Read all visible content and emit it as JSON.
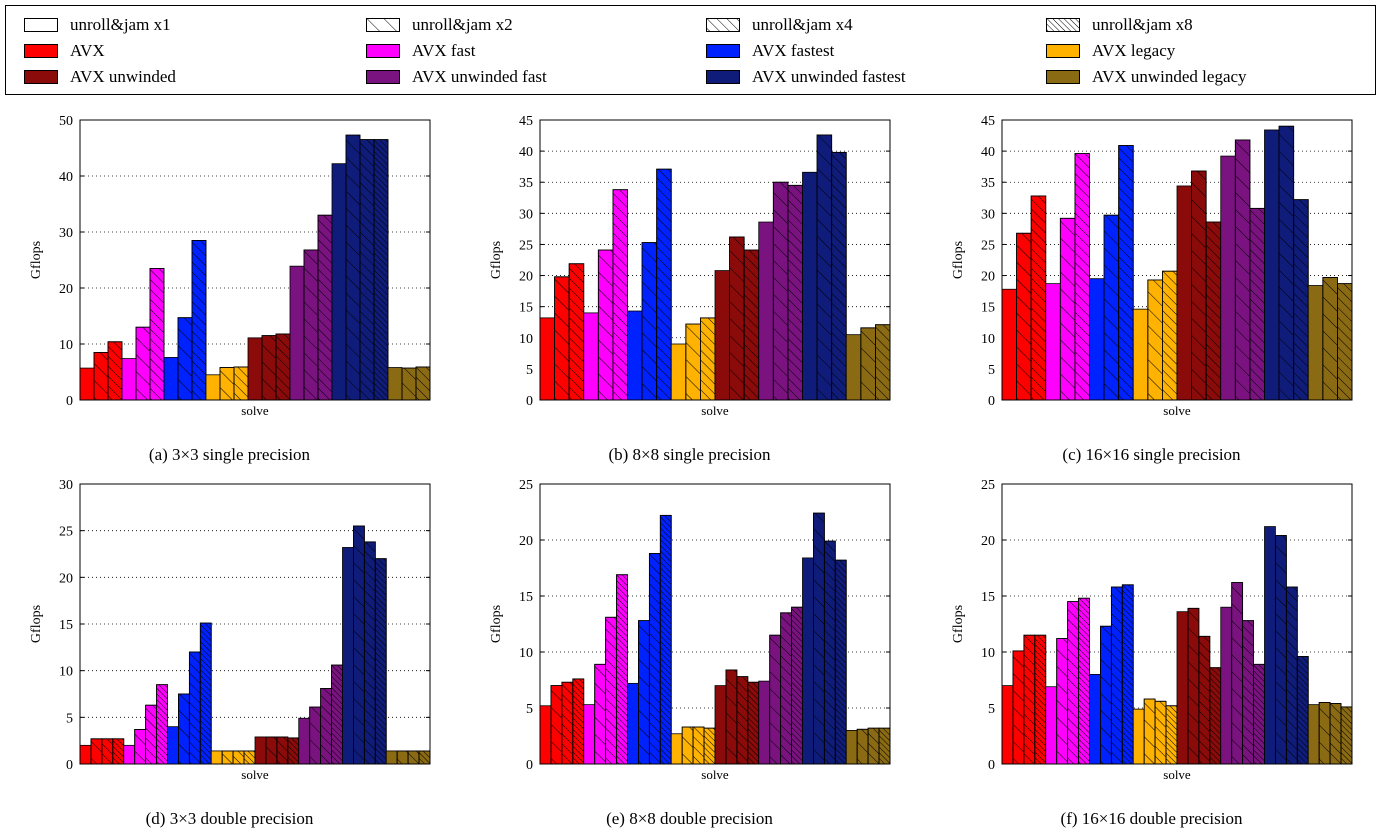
{
  "legend": {
    "items": [
      {
        "label": "unroll&jam x1",
        "kind": "hatch",
        "hatch": 1
      },
      {
        "label": "unroll&jam x2",
        "kind": "hatch",
        "hatch": 2
      },
      {
        "label": "unroll&jam x4",
        "kind": "hatch",
        "hatch": 4
      },
      {
        "label": "unroll&jam x8",
        "kind": "hatch",
        "hatch": 8
      },
      {
        "label": "AVX",
        "kind": "color",
        "color": "#ff0000"
      },
      {
        "label": "AVX fast",
        "kind": "color",
        "color": "#ff00ff"
      },
      {
        "label": "AVX fastest",
        "kind": "color",
        "color": "#0022ff"
      },
      {
        "label": "AVX legacy",
        "kind": "color",
        "color": "#ffb300"
      },
      {
        "label": "AVX unwinded",
        "kind": "color",
        "color": "#8b0a0a"
      },
      {
        "label": "AVX unwinded fast",
        "kind": "color",
        "color": "#7a1380"
      },
      {
        "label": "AVX unwinded fastest",
        "kind": "color",
        "color": "#101c7a"
      },
      {
        "label": "AVX unwinded legacy",
        "kind": "color",
        "color": "#8a6a12"
      }
    ]
  },
  "chart_data": [
    {
      "type": "bar",
      "caption": "(a) 3×3 single precision",
      "ylabel": "Gflops",
      "xlabel": "solve",
      "ylim": [
        0,
        50
      ],
      "yticks": [
        0,
        10,
        20,
        30,
        40,
        50
      ],
      "grid": true,
      "groups": [
        {
          "series": "AVX",
          "color": "#ff0000",
          "unroll": [
            1,
            2,
            4
          ],
          "values": [
            5.7,
            8.5,
            10.4
          ]
        },
        {
          "series": "AVX fast",
          "color": "#ff00ff",
          "unroll": [
            1,
            2,
            4
          ],
          "values": [
            7.4,
            13.0,
            23.5
          ]
        },
        {
          "series": "AVX fastest",
          "color": "#0022ff",
          "unroll": [
            1,
            2,
            4
          ],
          "values": [
            7.6,
            14.7,
            28.5
          ]
        },
        {
          "series": "AVX legacy",
          "color": "#ffb300",
          "unroll": [
            1,
            2,
            4
          ],
          "values": [
            4.5,
            5.8,
            5.9
          ]
        },
        {
          "series": "AVX unwinded",
          "color": "#8b0a0a",
          "unroll": [
            1,
            2,
            4
          ],
          "values": [
            11.1,
            11.5,
            11.8
          ]
        },
        {
          "series": "AVX unwinded fast",
          "color": "#7a1380",
          "unroll": [
            1,
            2,
            4
          ],
          "values": [
            23.9,
            26.8,
            33.0
          ]
        },
        {
          "series": "AVX unwinded fastest",
          "color": "#101c7a",
          "unroll": [
            1,
            2,
            4,
            8
          ],
          "values": [
            42.2,
            47.3,
            46.5,
            46.5
          ]
        },
        {
          "series": "AVX unwinded legacy",
          "color": "#8a6a12",
          "unroll": [
            1,
            2,
            4
          ],
          "values": [
            5.8,
            5.7,
            5.9
          ]
        }
      ]
    },
    {
      "type": "bar",
      "caption": "(b) 8×8 single precision",
      "ylabel": "Gflops",
      "xlabel": "solve",
      "ylim": [
        0,
        45
      ],
      "yticks": [
        0,
        5,
        10,
        15,
        20,
        25,
        30,
        35,
        40,
        45
      ],
      "grid": true,
      "groups": [
        {
          "series": "AVX",
          "color": "#ff0000",
          "unroll": [
            1,
            2,
            4
          ],
          "values": [
            13.2,
            19.8,
            21.9
          ]
        },
        {
          "series": "AVX fast",
          "color": "#ff00ff",
          "unroll": [
            1,
            2,
            4
          ],
          "values": [
            14.0,
            24.1,
            33.8
          ]
        },
        {
          "series": "AVX fastest",
          "color": "#0022ff",
          "unroll": [
            1,
            2,
            4
          ],
          "values": [
            14.3,
            25.3,
            37.1
          ]
        },
        {
          "series": "AVX legacy",
          "color": "#ffb300",
          "unroll": [
            1,
            2,
            4
          ],
          "values": [
            9.0,
            12.2,
            13.2
          ]
        },
        {
          "series": "AVX unwinded",
          "color": "#8b0a0a",
          "unroll": [
            1,
            2,
            4
          ],
          "values": [
            20.8,
            26.2,
            24.1
          ]
        },
        {
          "series": "AVX unwinded fast",
          "color": "#7a1380",
          "unroll": [
            1,
            2,
            4
          ],
          "values": [
            28.6,
            35.0,
            34.5
          ]
        },
        {
          "series": "AVX unwinded fastest",
          "color": "#101c7a",
          "unroll": [
            1,
            2,
            4
          ],
          "values": [
            36.6,
            42.6,
            39.8
          ]
        },
        {
          "series": "AVX unwinded legacy",
          "color": "#8a6a12",
          "unroll": [
            1,
            2,
            4
          ],
          "values": [
            10.5,
            11.6,
            12.1
          ]
        }
      ]
    },
    {
      "type": "bar",
      "caption": "(c) 16×16 single precision",
      "ylabel": "Gflops",
      "xlabel": "solve",
      "ylim": [
        0,
        45
      ],
      "yticks": [
        0,
        5,
        10,
        15,
        20,
        25,
        30,
        35,
        40,
        45
      ],
      "grid": true,
      "groups": [
        {
          "series": "AVX",
          "color": "#ff0000",
          "unroll": [
            1,
            2,
            4
          ],
          "values": [
            17.8,
            26.8,
            32.8
          ]
        },
        {
          "series": "AVX fast",
          "color": "#ff00ff",
          "unroll": [
            1,
            2,
            4
          ],
          "values": [
            18.7,
            29.2,
            39.6
          ]
        },
        {
          "series": "AVX fastest",
          "color": "#0022ff",
          "unroll": [
            1,
            2,
            4
          ],
          "values": [
            19.5,
            29.7,
            40.9
          ]
        },
        {
          "series": "AVX legacy",
          "color": "#ffb300",
          "unroll": [
            1,
            2,
            4
          ],
          "values": [
            14.6,
            19.3,
            20.7
          ]
        },
        {
          "series": "AVX unwinded",
          "color": "#8b0a0a",
          "unroll": [
            1,
            2,
            4
          ],
          "values": [
            34.4,
            36.8,
            28.6
          ]
        },
        {
          "series": "AVX unwinded fast",
          "color": "#7a1380",
          "unroll": [
            1,
            2,
            4
          ],
          "values": [
            39.2,
            41.8,
            30.8
          ]
        },
        {
          "series": "AVX unwinded fastest",
          "color": "#101c7a",
          "unroll": [
            1,
            2,
            4
          ],
          "values": [
            43.4,
            44.0,
            32.2
          ]
        },
        {
          "series": "AVX unwinded legacy",
          "color": "#8a6a12",
          "unroll": [
            1,
            2,
            4
          ],
          "values": [
            18.4,
            19.7,
            18.7
          ]
        }
      ]
    },
    {
      "type": "bar",
      "caption": "(d) 3×3 double precision",
      "ylabel": "Gflops",
      "xlabel": "solve",
      "ylim": [
        0,
        30
      ],
      "yticks": [
        0,
        5,
        10,
        15,
        20,
        25,
        30
      ],
      "grid": true,
      "groups": [
        {
          "series": "AVX",
          "color": "#ff0000",
          "unroll": [
            1,
            2,
            4,
            8
          ],
          "values": [
            2.0,
            2.7,
            2.7,
            2.7
          ]
        },
        {
          "series": "AVX fast",
          "color": "#ff00ff",
          "unroll": [
            1,
            2,
            4,
            8
          ],
          "values": [
            2.0,
            3.7,
            6.3,
            8.5
          ]
        },
        {
          "series": "AVX fastest",
          "color": "#0022ff",
          "unroll": [
            1,
            2,
            4,
            8
          ],
          "values": [
            4.0,
            7.5,
            12.0,
            15.1
          ]
        },
        {
          "series": "AVX legacy",
          "color": "#ffb300",
          "unroll": [
            1,
            2,
            4,
            8
          ],
          "values": [
            1.4,
            1.4,
            1.4,
            1.4
          ]
        },
        {
          "series": "AVX unwinded",
          "color": "#8b0a0a",
          "unroll": [
            1,
            2,
            4,
            8
          ],
          "values": [
            2.9,
            2.9,
            2.9,
            2.8
          ]
        },
        {
          "series": "AVX unwinded fast",
          "color": "#7a1380",
          "unroll": [
            1,
            2,
            4,
            8
          ],
          "values": [
            4.9,
            6.1,
            8.1,
            10.6
          ]
        },
        {
          "series": "AVX unwinded fastest",
          "color": "#101c7a",
          "unroll": [
            1,
            2,
            4,
            8
          ],
          "values": [
            23.2,
            25.5,
            23.8,
            22.0
          ]
        },
        {
          "series": "AVX unwinded legacy",
          "color": "#8a6a12",
          "unroll": [
            1,
            2,
            4,
            8
          ],
          "values": [
            1.4,
            1.4,
            1.4,
            1.4
          ]
        }
      ]
    },
    {
      "type": "bar",
      "caption": "(e) 8×8 double precision",
      "ylabel": "Gflops",
      "xlabel": "solve",
      "ylim": [
        0,
        25
      ],
      "yticks": [
        0,
        5,
        10,
        15,
        20,
        25
      ],
      "grid": true,
      "groups": [
        {
          "series": "AVX",
          "color": "#ff0000",
          "unroll": [
            1,
            2,
            4,
            8
          ],
          "values": [
            5.2,
            7.0,
            7.3,
            7.6
          ]
        },
        {
          "series": "AVX fast",
          "color": "#ff00ff",
          "unroll": [
            1,
            2,
            4,
            8
          ],
          "values": [
            5.3,
            8.9,
            13.1,
            16.9
          ]
        },
        {
          "series": "AVX fastest",
          "color": "#0022ff",
          "unroll": [
            1,
            2,
            4,
            8
          ],
          "values": [
            7.2,
            12.8,
            18.8,
            22.2
          ]
        },
        {
          "series": "AVX legacy",
          "color": "#ffb300",
          "unroll": [
            1,
            2,
            4,
            8
          ],
          "values": [
            2.7,
            3.3,
            3.3,
            3.2
          ]
        },
        {
          "series": "AVX unwinded",
          "color": "#8b0a0a",
          "unroll": [
            1,
            2,
            4,
            8
          ],
          "values": [
            7.0,
            8.4,
            7.8,
            7.3
          ]
        },
        {
          "series": "AVX unwinded fast",
          "color": "#7a1380",
          "unroll": [
            1,
            2,
            4,
            8
          ],
          "values": [
            7.4,
            11.5,
            13.5,
            14.0
          ]
        },
        {
          "series": "AVX unwinded fastest",
          "color": "#101c7a",
          "unroll": [
            1,
            2,
            4,
            8
          ],
          "values": [
            18.4,
            22.4,
            19.9,
            18.2
          ]
        },
        {
          "series": "AVX unwinded legacy",
          "color": "#8a6a12",
          "unroll": [
            1,
            2,
            4,
            8
          ],
          "values": [
            3.0,
            3.1,
            3.2,
            3.2
          ]
        }
      ]
    },
    {
      "type": "bar",
      "caption": "(f) 16×16 double precision",
      "ylabel": "Gflops",
      "xlabel": "solve",
      "ylim": [
        0,
        25
      ],
      "yticks": [
        0,
        5,
        10,
        15,
        20,
        25
      ],
      "grid": true,
      "groups": [
        {
          "series": "AVX",
          "color": "#ff0000",
          "unroll": [
            1,
            2,
            4,
            8
          ],
          "values": [
            7.0,
            10.1,
            11.5,
            11.5
          ]
        },
        {
          "series": "AVX fast",
          "color": "#ff00ff",
          "unroll": [
            1,
            2,
            4,
            8
          ],
          "values": [
            6.9,
            11.2,
            14.5,
            14.8
          ]
        },
        {
          "series": "AVX fastest",
          "color": "#0022ff",
          "unroll": [
            1,
            2,
            4,
            8
          ],
          "values": [
            8.0,
            12.3,
            15.8,
            16.0
          ]
        },
        {
          "series": "AVX legacy",
          "color": "#ffb300",
          "unroll": [
            1,
            2,
            4,
            8
          ],
          "values": [
            4.9,
            5.8,
            5.6,
            5.2
          ]
        },
        {
          "series": "AVX unwinded",
          "color": "#8b0a0a",
          "unroll": [
            1,
            2,
            4,
            8
          ],
          "values": [
            13.6,
            13.9,
            11.4,
            8.6
          ]
        },
        {
          "series": "AVX unwinded fast",
          "color": "#7a1380",
          "unroll": [
            1,
            2,
            4,
            8
          ],
          "values": [
            14.0,
            16.2,
            12.8,
            8.9
          ]
        },
        {
          "series": "AVX unwinded fastest",
          "color": "#101c7a",
          "unroll": [
            1,
            2,
            4,
            8
          ],
          "values": [
            21.2,
            20.4,
            15.8,
            9.6
          ]
        },
        {
          "series": "AVX unwinded legacy",
          "color": "#8a6a12",
          "unroll": [
            1,
            2,
            4,
            8
          ],
          "values": [
            5.3,
            5.5,
            5.4,
            5.1
          ]
        }
      ]
    }
  ]
}
